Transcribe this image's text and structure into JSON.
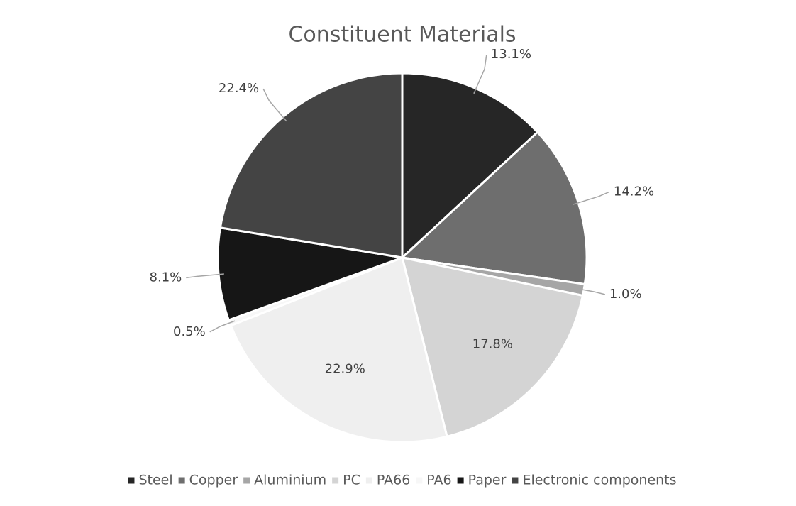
{
  "chart_data": {
    "type": "pie",
    "title": "Constituent Materials",
    "categories": [
      "Steel",
      "Copper",
      "Aluminium",
      "PC",
      "PA66",
      "PA6",
      "Paper",
      "Electronic components"
    ],
    "values": [
      13.1,
      14.2,
      1.0,
      17.8,
      22.9,
      0.5,
      8.1,
      22.4
    ],
    "value_labels": [
      "13.1%",
      "14.2%",
      "1.0%",
      "17.8%",
      "22.9%",
      "0.5%",
      "8.1%",
      "22.4%"
    ],
    "colors": [
      "#262626",
      "#6e6e6e",
      "#a6a6a6",
      "#d4d4d4",
      "#efefef",
      "#f7f7f7",
      "#161616",
      "#444444"
    ],
    "legend": "bottom"
  }
}
